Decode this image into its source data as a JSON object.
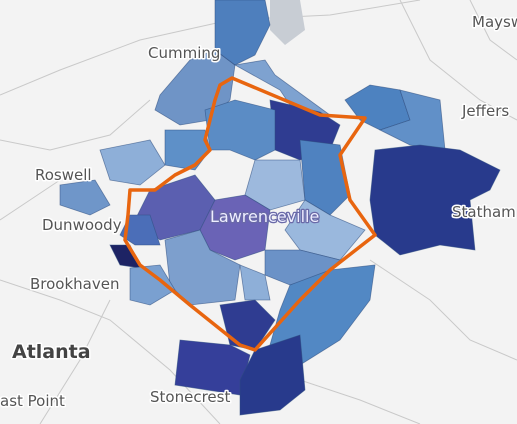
{
  "labels": {
    "maysville": "Maysw",
    "cumming": "Cumming",
    "jefferson": "Jeffers",
    "roswell": "Roswell",
    "dunwoody": "Dunwoody",
    "lawrenceville": "Lawrenceville",
    "statham": "Statham",
    "brookhaven": "Brookhaven",
    "atlanta": "Atlanta",
    "east_point": "ast Point",
    "stonecrest": "Stonecrest"
  }
}
